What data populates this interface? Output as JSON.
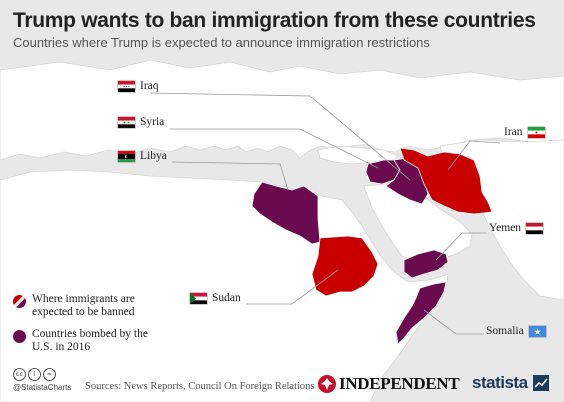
{
  "title": "Trump wants to ban immigration from these countries",
  "subtitle": "Countries where Trump is expected to announce immigration restrictions",
  "colors": {
    "banned": "#c90000",
    "bombed": "#6b0b4f",
    "land": "#ffffff",
    "sea": "#e8e8e8",
    "leader": "#9a9a9a"
  },
  "countries": [
    {
      "key": "iraq",
      "label": "Iraq",
      "category": "both"
    },
    {
      "key": "syria",
      "label": "Syria",
      "category": "both"
    },
    {
      "key": "libya",
      "label": "Libya",
      "category": "both"
    },
    {
      "key": "iran",
      "label": "Iran",
      "category": "banned"
    },
    {
      "key": "yemen",
      "label": "Yemen",
      "category": "both"
    },
    {
      "key": "sudan",
      "label": "Sudan",
      "category": "banned"
    },
    {
      "key": "somalia",
      "label": "Somalia",
      "category": "both"
    }
  ],
  "legend": {
    "banned": "Where immigrants are expected to be banned",
    "bombed": "Countries bombed by the U.S. in 2016"
  },
  "footer": {
    "handle": "@StatistaCharts",
    "source": "Sources: News Reports, Council On Foreign Relations",
    "independent": "INDEPENDENT",
    "statista": "statista",
    "cc_icons": [
      "cc-icon",
      "by-icon",
      "nd-icon"
    ],
    "cc_glyphs": [
      "cc",
      "i",
      "="
    ]
  }
}
